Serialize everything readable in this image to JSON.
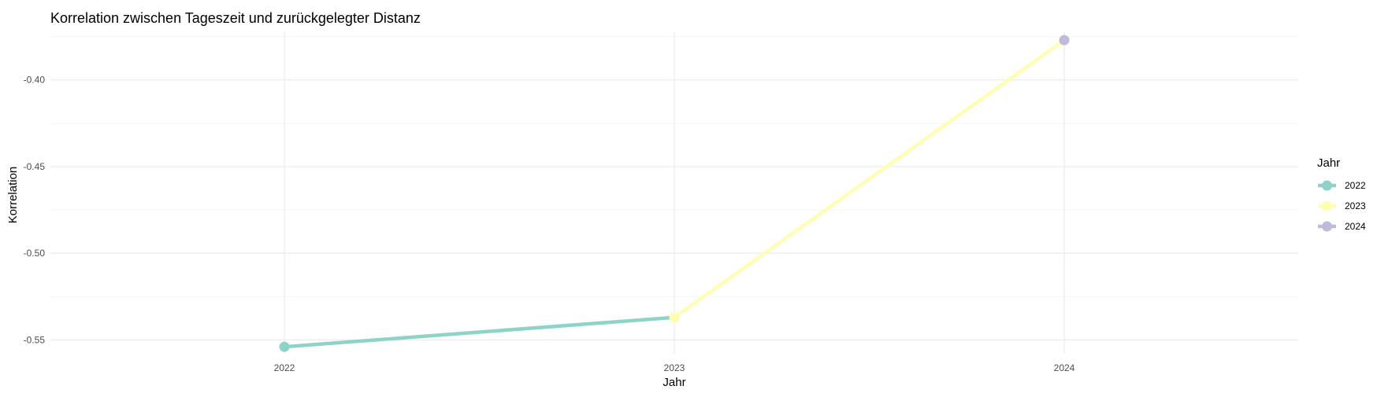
{
  "chart_data": {
    "type": "line",
    "title": "Korrelation zwischen Tageszeit und zurückgelegter Distanz",
    "xlabel": "Jahr",
    "ylabel": "Korrelation",
    "x": [
      "2022",
      "2023",
      "2024"
    ],
    "y": [
      -0.554,
      -0.537,
      -0.377
    ],
    "point_colors": [
      "#8dd3c7",
      "#ffffb3",
      "#bebada"
    ],
    "segment_colors": [
      "#8dd3c7",
      "#ffffb3"
    ],
    "yticks": [
      -0.55,
      -0.5,
      -0.45,
      -0.4
    ],
    "ytick_labels": [
      "-0.55",
      "-0.50",
      "-0.45",
      "-0.40"
    ],
    "ylim": [
      -0.558,
      -0.372
    ],
    "grid": true,
    "legend": {
      "title": "Jahr",
      "position": "right",
      "entries": [
        {
          "label": "2022",
          "color": "#8dd3c7"
        },
        {
          "label": "2023",
          "color": "#ffffb3"
        },
        {
          "label": "2024",
          "color": "#bebada"
        }
      ]
    }
  }
}
